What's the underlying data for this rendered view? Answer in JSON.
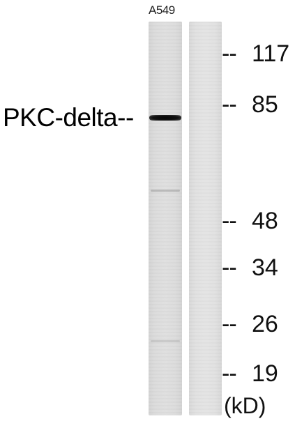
{
  "sample_label": "A549",
  "target_label": "PKC-delta--",
  "unit_label": "(kD)",
  "marker_dash": "--",
  "markers": [
    {
      "value": "117"
    },
    {
      "value": "85"
    },
    {
      "value": "48"
    },
    {
      "value": "34"
    },
    {
      "value": "26"
    },
    {
      "value": "19"
    }
  ],
  "colors": {
    "background": "#ffffff",
    "lane": "#dcdcdc",
    "band": "#0a0a0a",
    "text": "#111111"
  }
}
